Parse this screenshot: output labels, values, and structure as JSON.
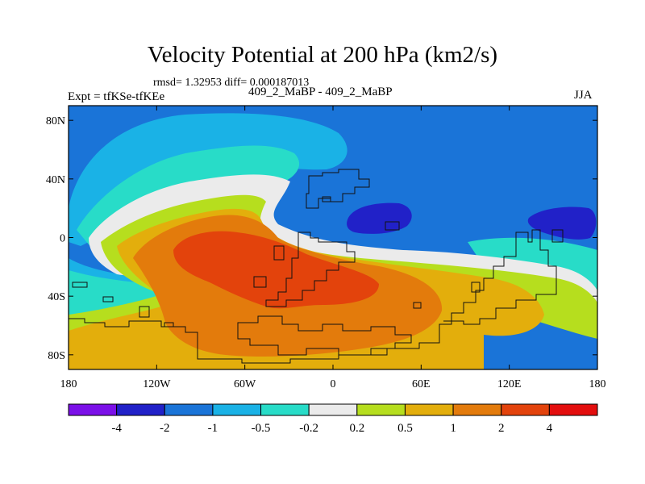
{
  "header": {
    "title": "Velocity Potential at 200 hPa (km2/s)",
    "stats": "rmsd= 1.32953 diff= 0.000187013",
    "experiment": "Expt = tfKSe-tfKEe",
    "case": "409_2_MaBP - 409_2_MaBP",
    "season": "JJA"
  },
  "map": {
    "type": "contour-fill",
    "lon_range": [
      -180,
      180
    ],
    "lat_range": [
      -90,
      90
    ],
    "y_ticks": [
      {
        "lat": 80,
        "label": "80N"
      },
      {
        "lat": 40,
        "label": "40N"
      },
      {
        "lat": 0,
        "label": "0"
      },
      {
        "lat": -40,
        "label": "40S"
      },
      {
        "lat": -80,
        "label": "80S"
      }
    ],
    "x_ticks": [
      {
        "lon": -180,
        "label": "180"
      },
      {
        "lon": -120,
        "label": "120W"
      },
      {
        "lon": -60,
        "label": "60W"
      },
      {
        "lon": 0,
        "label": "0"
      },
      {
        "lon": 60,
        "label": "60E"
      },
      {
        "lon": 120,
        "label": "120E"
      },
      {
        "lon": 180,
        "label": "180"
      }
    ]
  },
  "colorbar": {
    "colors": [
      "#7b10e8",
      "#2121c8",
      "#1a74d8",
      "#1ab2e6",
      "#28dcc8",
      "#ebebeb",
      "#b6de1e",
      "#e3ae0c",
      "#e37b0c",
      "#e3430c",
      "#e30e0e"
    ],
    "labels": [
      "-4",
      "-2",
      "-1",
      "-0.5",
      "-0.2",
      "0.2",
      "0.5",
      "1",
      "2",
      "4"
    ]
  }
}
